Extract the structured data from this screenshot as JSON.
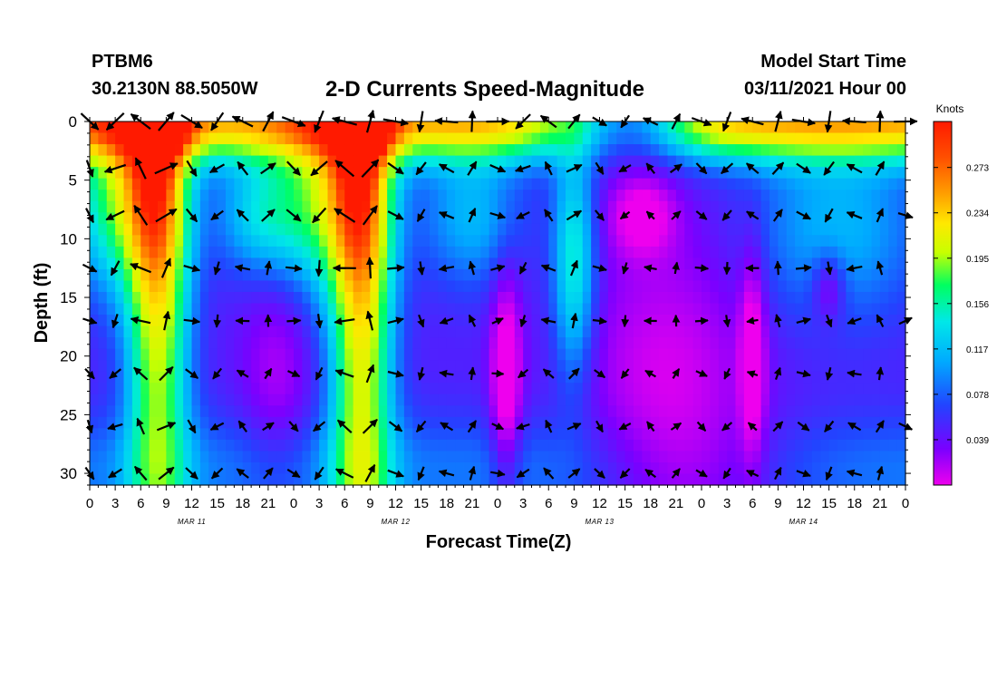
{
  "header": {
    "station_id": "PTBM6",
    "coords": "30.2130N 88.5050W",
    "title": "2-D Currents Speed-Magnitude",
    "model_label": "Model Start Time",
    "model_time": "03/11/2021 Hour 00"
  },
  "chart_data": {
    "type": "heatmap",
    "title": "2-D Currents Speed-Magnitude",
    "xlabel": "Forecast Time(Z)",
    "ylabel": "Depth (ft)",
    "x_hours_range": [
      0,
      96
    ],
    "ylim": [
      0,
      31
    ],
    "y_inverted": true,
    "x_tick_labels": [
      "0",
      "3",
      "6",
      "9",
      "12",
      "15",
      "18",
      "21",
      "0",
      "3",
      "6",
      "9",
      "12",
      "15",
      "18",
      "21",
      "0",
      "3",
      "6",
      "9",
      "12",
      "15",
      "18",
      "21",
      "0",
      "3",
      "6",
      "9",
      "12",
      "15",
      "18",
      "21",
      "0"
    ],
    "y_tick_labels": [
      "0",
      "5",
      "10",
      "15",
      "20",
      "25",
      "30"
    ],
    "date_labels": [
      "MAR 11",
      "MAR 12",
      "MAR 13",
      "MAR 14"
    ],
    "colorbar": {
      "unit": "Knots",
      "tick_labels": [
        "0.273",
        "0.234",
        "0.195",
        "0.156",
        "0.117",
        "0.078",
        "0.039"
      ],
      "colors": [
        "#ee00ee",
        "#7a00ff",
        "#2244ff",
        "#00aaff",
        "#00e8e8",
        "#00ff60",
        "#c8ff00",
        "#ffe800",
        "#ffa000",
        "#ff5000",
        "#ff1a00"
      ]
    },
    "arrow_depths_ft": [
      0,
      4,
      8,
      12.5,
      17,
      21.5,
      26,
      30
    ],
    "arrow_times_h": [
      0,
      3,
      6,
      9,
      12,
      15,
      18,
      21,
      24,
      27,
      30,
      33,
      36,
      39,
      42,
      45,
      48,
      51,
      54,
      57,
      60,
      63,
      66,
      69,
      72,
      75,
      78,
      81,
      84,
      87,
      90,
      93,
      96
    ],
    "speed_pattern_note": "Stronger currents (0.2-0.3 kt) near the surface and around 06-12Z on Mar 11 and Mar 12; weaker (<0.06 kt) in deeper layers and on Mar 13-14."
  }
}
